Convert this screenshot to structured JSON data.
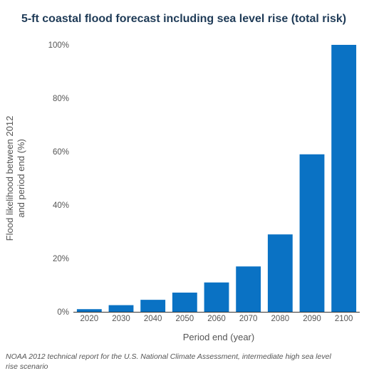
{
  "chart_data": {
    "type": "bar",
    "title": "5-ft coastal flood forecast including sea level rise (total risk)",
    "categories": [
      "2020",
      "2030",
      "2040",
      "2050",
      "2060",
      "2070",
      "2080",
      "2090",
      "2100"
    ],
    "values": [
      1,
      2.5,
      4.5,
      7.2,
      11,
      17,
      29,
      59,
      100
    ],
    "xlabel": "Period end (year)",
    "ylabel": [
      "Flood likelihood between 2012",
      "and period end (%)"
    ],
    "ylim": [
      0,
      100
    ],
    "yticks": [
      0,
      20,
      40,
      60,
      80,
      100
    ],
    "ytick_labels": [
      "0%",
      "20%",
      "40%",
      "60%",
      "80%",
      "100%"
    ],
    "bar_color": "#0a72c4",
    "grid": false,
    "legend": "none"
  },
  "footnote": "NOAA 2012 technical report for the U.S. National Climate Assessment, intermediate high sea level rise scenario"
}
